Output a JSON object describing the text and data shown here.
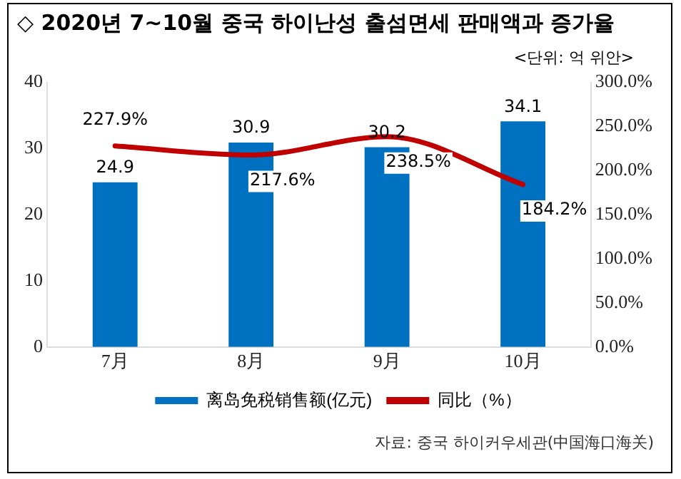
{
  "chart_data": {
    "type": "bar",
    "title": "◇ 2020년 7~10월 중국 하이난성 출섬면세 판매액과 증가율",
    "subtitle": "<단위: 억 위안>",
    "categories": [
      "7月",
      "8月",
      "9月",
      "10月"
    ],
    "series": [
      {
        "name": "离岛免税销售额(亿元)",
        "color": "#0070c0",
        "values": [
          24.9,
          30.9,
          30.2,
          34.1
        ],
        "value_labels": [
          "24.9",
          "30.9",
          "30.2",
          "34.1"
        ]
      },
      {
        "name": "同比（%）",
        "type": "line",
        "axis": "y2",
        "color": "#c00000",
        "values": [
          227.9,
          217.6,
          238.5,
          184.2
        ],
        "value_labels": [
          "227.9%",
          "217.6%",
          "238.5%",
          "184.2%"
        ]
      }
    ],
    "ylim": [
      0,
      40
    ],
    "yticks": [
      0,
      10,
      20,
      30,
      40
    ],
    "y2lim": [
      0,
      300
    ],
    "y2ticks": [
      {
        "value": 0,
        "label": "0.0%"
      },
      {
        "value": 50,
        "label": "50.0%"
      },
      {
        "value": 100,
        "label": "100.0%"
      },
      {
        "value": 150,
        "label": "150.0%"
      },
      {
        "value": 200,
        "label": "200.0%"
      },
      {
        "value": 250,
        "label": "250.0%"
      },
      {
        "value": 300,
        "label": "300.0%"
      }
    ],
    "legend": "bottom",
    "marker": "none",
    "annotations": [
      "자료: 중국 하이커우세관(中国海口海关)"
    ]
  }
}
